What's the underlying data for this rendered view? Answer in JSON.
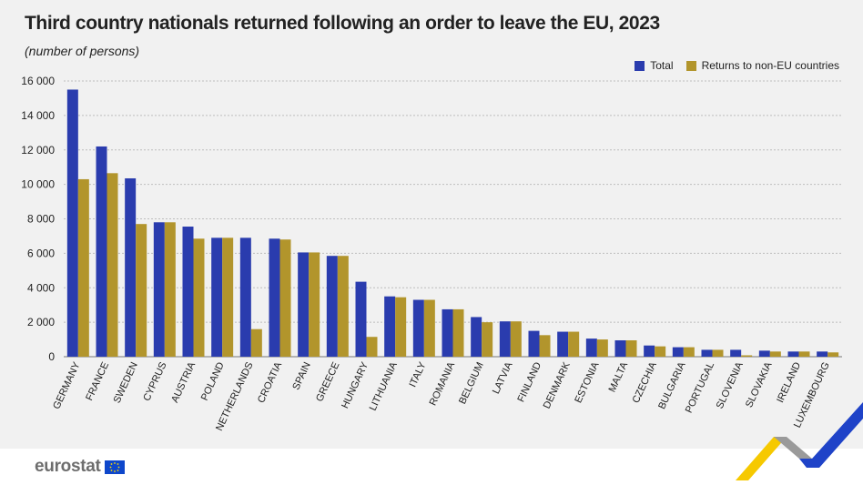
{
  "title": "Third country nationals returned following an order to leave the EU, 2023",
  "subtitle": "(number of persons)",
  "colors": {
    "total": "#2a3cae",
    "non_eu": "#b2952c",
    "grid": "#bdbdbd",
    "panel": "#f1f1f1"
  },
  "footer": {
    "logo_text": "eurostat",
    "logo_icon": "eu-flag-icon"
  },
  "chart_data": {
    "type": "bar",
    "title": "Third country nationals returned following an order to leave the EU, 2023",
    "subtitle": "(number of persons)",
    "xlabel": "",
    "ylabel": "",
    "ylim": [
      0,
      16000
    ],
    "yticks": [
      0,
      2000,
      4000,
      6000,
      8000,
      10000,
      12000,
      14000,
      16000
    ],
    "ytick_labels": [
      "0",
      "2 000",
      "4 000",
      "6 000",
      "8 000",
      "10 000",
      "12 000",
      "14 000",
      "16 000"
    ],
    "grid": "horizontal",
    "legend_position": "top-right",
    "categories": [
      "GERMANY",
      "FRANCE",
      "SWEDEN",
      "CYPRUS",
      "AUSTRIA",
      "POLAND",
      "NETHERLANDS",
      "CROATIA",
      "SPAIN",
      "GREECE",
      "HUNGARY",
      "LITHUANIA",
      "ITALY",
      "ROMANIA",
      "BELGIUM",
      "LATVIA",
      "FINLAND",
      "DENMARK",
      "ESTONIA",
      "MALTA",
      "CZECHIA",
      "BULGARIA",
      "PORTUGAL",
      "SLOVENIA",
      "SLOVAKIA",
      "IRELAND",
      "LUXEMBOURG"
    ],
    "series": [
      {
        "name": "Total",
        "color": "#2a3cae",
        "values": [
          15500,
          12200,
          10350,
          7800,
          7550,
          6900,
          6900,
          6850,
          6050,
          5850,
          4350,
          3500,
          3300,
          2750,
          2300,
          2050,
          1500,
          1450,
          1050,
          950,
          650,
          550,
          400,
          400,
          350,
          300,
          300
        ]
      },
      {
        "name": "Returns to non-EU countries",
        "color": "#b2952c",
        "values": [
          10300,
          10650,
          7700,
          7800,
          6850,
          6900,
          1600,
          6800,
          6050,
          5850,
          1150,
          3450,
          3300,
          2750,
          2000,
          2050,
          1250,
          1450,
          1000,
          950,
          600,
          550,
          400,
          80,
          300,
          300,
          250
        ]
      }
    ]
  }
}
